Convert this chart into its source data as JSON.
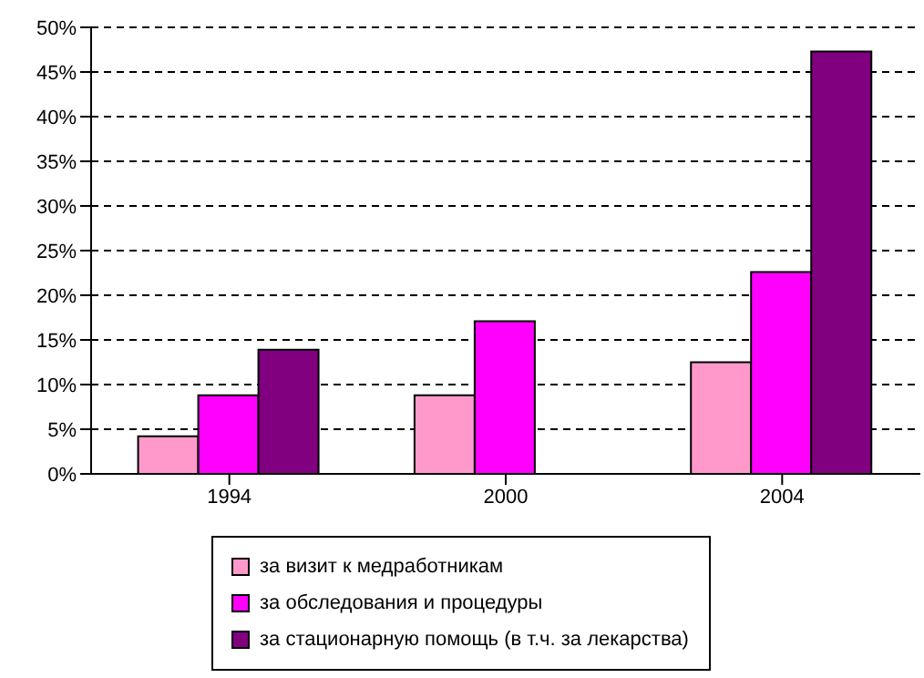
{
  "chart_data": {
    "type": "bar",
    "categories": [
      "1994",
      "2000",
      "2004"
    ],
    "series": [
      {
        "name": "за визит к медработникам",
        "color": "#ff99cc",
        "values": [
          4.2,
          8.8,
          12.5
        ]
      },
      {
        "name": "за обследования и процедуры",
        "color": "#ff00ff",
        "values": [
          8.8,
          17.1,
          22.6
        ]
      },
      {
        "name": "за стационарную помощь (в т.ч. за лекарства)",
        "color": "#800080",
        "values": [
          13.9,
          null,
          47.3
        ]
      }
    ],
    "ylim": [
      0,
      50
    ],
    "yticks": [
      {
        "value": 0,
        "label": "0%"
      },
      {
        "value": 5,
        "label": "5%"
      },
      {
        "value": 10,
        "label": "10%"
      },
      {
        "value": 15,
        "label": "15%"
      },
      {
        "value": 20,
        "label": "20%"
      },
      {
        "value": 25,
        "label": "25%"
      },
      {
        "value": 30,
        "label": "30%"
      },
      {
        "value": 35,
        "label": "35%"
      },
      {
        "value": 40,
        "label": "40%"
      },
      {
        "value": 45,
        "label": "45%"
      },
      {
        "value": 50,
        "label": "50%"
      }
    ],
    "grid": "y",
    "legend": "bottom"
  }
}
